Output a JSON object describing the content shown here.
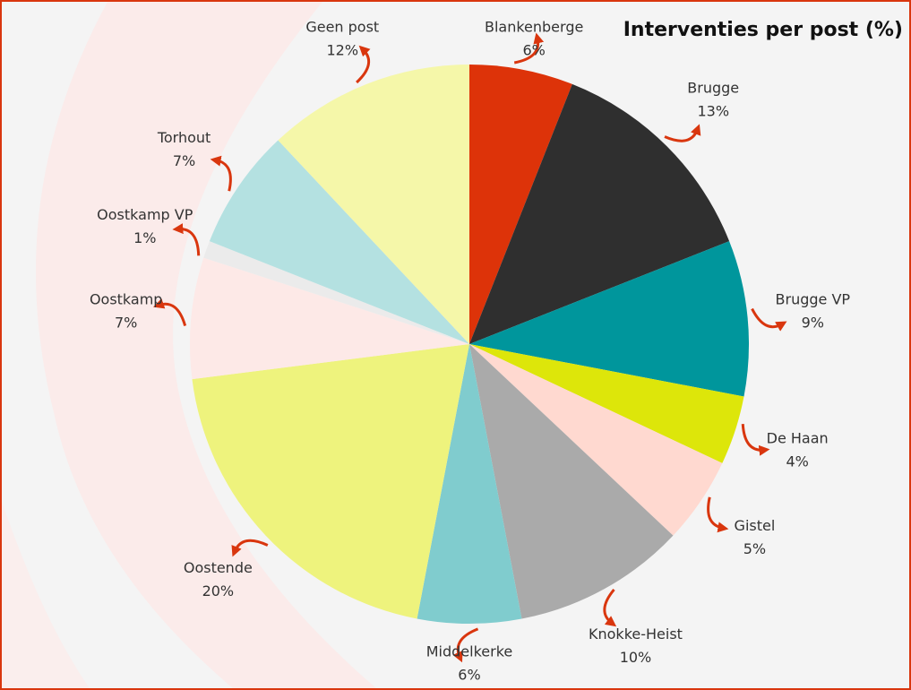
{
  "chart_data": {
    "type": "pie",
    "title": "Interventies per post (%)",
    "categories": [
      "Blankenberge",
      "Brugge",
      "Brugge VP",
      "De Haan",
      "Gistel",
      "Knokke-Heist",
      "Middelkerke",
      "Oostende",
      "Oostkamp",
      "Oostkamp VP",
      "Torhout",
      "Geen post"
    ],
    "values": [
      6,
      13,
      9,
      4,
      5,
      10,
      6,
      20,
      7,
      1,
      7,
      12
    ],
    "value_labels": [
      "6%",
      "13%",
      "9%",
      "4%",
      "5%",
      "10%",
      "6%",
      "20%",
      "7%",
      "1%",
      "7%",
      "12%"
    ],
    "colors": [
      "#dd3309",
      "#2f2f2f",
      "#00969c",
      "#dde60a",
      "#ffd9d0",
      "#aaaaaa",
      "#80ccce",
      "#eef37d",
      "#fde9e7",
      "#ebebeb",
      "#b4e1e1",
      "#f5f7a9"
    ]
  }
}
